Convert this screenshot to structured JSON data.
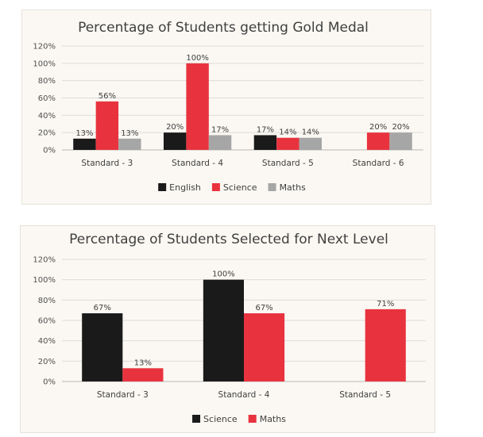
{
  "chart_data": [
    {
      "type": "bar",
      "title": "Percentage of Students getting Gold Medal",
      "categories": [
        "Standard - 3",
        "Standard - 4",
        "Standard - 5",
        "Standard - 6"
      ],
      "series": [
        {
          "name": "English",
          "color": "#1a1a1a",
          "values": [
            13,
            20,
            17,
            null
          ],
          "labels": [
            "13%",
            "20%",
            "17%",
            null
          ]
        },
        {
          "name": "Science",
          "color": "#e8333f",
          "values": [
            56,
            100,
            14,
            20
          ],
          "labels": [
            "56%",
            "100%",
            "14%",
            "20%"
          ]
        },
        {
          "name": "Maths",
          "color": "#a6a6a6",
          "values": [
            13,
            17,
            14,
            20
          ],
          "labels": [
            "13%",
            "17%",
            "14%",
            "20%"
          ]
        }
      ],
      "ylim": [
        0,
        120
      ],
      "yticks": [
        "0%",
        "20%",
        "40%",
        "60%",
        "80%",
        "100%",
        "120%"
      ],
      "grid": true,
      "legend": "bottom"
    },
    {
      "type": "bar",
      "title": "Percentage of Students Selected for Next Level",
      "categories": [
        "Standard - 3",
        "Standard - 4",
        "Standard - 5"
      ],
      "series": [
        {
          "name": "Science",
          "color": "#1a1a1a",
          "values": [
            67,
            100,
            null
          ],
          "labels": [
            "67%",
            "100%",
            null
          ]
        },
        {
          "name": "Maths",
          "color": "#e8333f",
          "values": [
            13,
            67,
            71
          ],
          "labels": [
            "13%",
            "67%",
            "71%"
          ]
        }
      ],
      "ylim": [
        0,
        120
      ],
      "yticks": [
        "0%",
        "20%",
        "40%",
        "60%",
        "80%",
        "100%",
        "120%"
      ],
      "grid": true,
      "legend": "bottom"
    }
  ]
}
